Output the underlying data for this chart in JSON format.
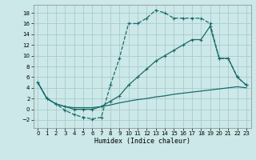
{
  "xlabel": "Humidex (Indice chaleur)",
  "bg_color": "#cce8e8",
  "grid_color": "#aacccc",
  "line_color": "#1a6b6b",
  "xlim": [
    -0.5,
    23.5
  ],
  "ylim": [
    -3.5,
    19.5
  ],
  "xticks": [
    0,
    1,
    2,
    3,
    4,
    5,
    6,
    7,
    8,
    9,
    10,
    11,
    12,
    13,
    14,
    15,
    16,
    17,
    18,
    19,
    20,
    21,
    22,
    23
  ],
  "yticks": [
    -2,
    0,
    2,
    4,
    6,
    8,
    10,
    12,
    14,
    16,
    18
  ],
  "series1_x": [
    0,
    1,
    2,
    3,
    4,
    5,
    6,
    7,
    8,
    9,
    10,
    11,
    12,
    13,
    14,
    15,
    16,
    17,
    18,
    19,
    20,
    21,
    22,
    23
  ],
  "series1_y": [
    5,
    2,
    1,
    -0.2,
    -1,
    -1.5,
    -1.8,
    -1.5,
    4.5,
    9.5,
    16,
    16,
    17,
    18.5,
    18,
    17,
    17,
    17,
    17,
    16,
    9.5,
    9.5,
    6,
    4.5
  ],
  "series2_x": [
    0,
    1,
    2,
    3,
    4,
    5,
    6,
    7,
    8,
    9,
    10,
    11,
    12,
    13,
    14,
    15,
    16,
    17,
    18,
    19,
    20,
    21,
    22,
    23
  ],
  "series2_y": [
    5,
    2,
    1,
    0.5,
    0.3,
    0.3,
    0.3,
    0.5,
    0.8,
    1.2,
    1.5,
    1.8,
    2.0,
    2.3,
    2.5,
    2.8,
    3.0,
    3.2,
    3.4,
    3.6,
    3.8,
    4.0,
    4.2,
    4.0
  ],
  "series3_x": [
    0,
    1,
    2,
    3,
    4,
    5,
    6,
    7,
    8,
    9,
    10,
    11,
    12,
    13,
    14,
    15,
    16,
    17,
    18,
    19,
    20,
    21,
    22,
    23
  ],
  "series3_y": [
    5,
    2,
    1,
    0.5,
    0,
    0,
    0,
    0.5,
    1.5,
    2.5,
    4.5,
    6,
    7.5,
    9,
    10,
    11,
    12,
    13,
    13,
    15.5,
    9.5,
    9.5,
    6,
    4.5
  ]
}
